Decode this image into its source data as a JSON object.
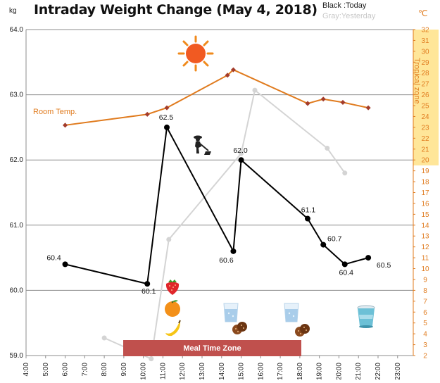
{
  "header": {
    "title": "Intraday Weight Change (May 4, 2018)",
    "legend_today": "Black :Today",
    "legend_yesterday": "Gray:Yesterday",
    "unit_left": "kg",
    "unit_right": "℃",
    "tropical_zone_label": "Tropical zone",
    "room_temp_label": "Room Temp.",
    "meal_zone_label": "Meal Time Zone"
  },
  "colors": {
    "today": "#000000",
    "yesterday": "#d4d4d4",
    "room_temp_line": "#e07b1e",
    "room_temp_marker": "#a33c2b",
    "tropical_zone_fill": "#ffe699",
    "meal_zone_fill": "#c0504d",
    "gridline": "#8c8c8c"
  },
  "icons": [
    "sun-icon",
    "worker-icon",
    "strawberry-icon",
    "orange-icon",
    "banana-icon",
    "water-glass-icon",
    "cookies-icon",
    "water-glass-icon",
    "cookies-icon",
    "yogurt-cup-icon"
  ],
  "chart_data": {
    "type": "line",
    "x_ticks": [
      "4:00",
      "5:00",
      "6:00",
      "7:00",
      "8:00",
      "9:00",
      "10:00",
      "11:00",
      "12:00",
      "13:00",
      "14:00",
      "15:00",
      "16:00",
      "17:00",
      "18:00",
      "19:00",
      "20:00",
      "21:00",
      "22:00",
      "23:00"
    ],
    "x_range": [
      4,
      23.8
    ],
    "y_left": {
      "range": [
        59.0,
        64.0
      ],
      "ticks": [
        "59.0",
        "60.0",
        "61.0",
        "62.0",
        "63.0",
        "64.0"
      ],
      "unit": "kg"
    },
    "y_right": {
      "range": [
        2,
        32
      ],
      "ticks": [
        "2",
        "3",
        "4",
        "5",
        "6",
        "7",
        "8",
        "9",
        "10",
        "11",
        "12",
        "13",
        "14",
        "15",
        "16",
        "17",
        "18",
        "19",
        "20",
        "21",
        "22",
        "23",
        "24",
        "25",
        "26",
        "27",
        "28",
        "29",
        "30",
        "31",
        "32"
      ],
      "unit": "℃"
    },
    "grid": true,
    "tropical_zone": {
      "from": 19.5,
      "to": 32
    },
    "meal_time_zone": {
      "from": 9.0,
      "to": 18.1
    },
    "series": [
      {
        "name": "Today",
        "axis": "left",
        "x": [
          6.0,
          10.2,
          11.2,
          14.6,
          15.0,
          18.4,
          19.2,
          20.3,
          21.5
        ],
        "y": [
          60.4,
          60.1,
          62.5,
          60.6,
          62.0,
          61.1,
          60.7,
          60.4,
          60.5
        ],
        "labels": [
          "60.4",
          "60.1",
          "62.5",
          "60.6",
          "62.0",
          "61.1",
          "60.7",
          "60.4",
          "60.5"
        ]
      },
      {
        "name": "Yesterday",
        "axis": "left",
        "x": [
          8.0,
          10.4,
          11.3,
          15.0,
          15.7,
          19.4,
          20.3
        ],
        "y": [
          59.27,
          58.95,
          60.78,
          62.1,
          63.07,
          62.18,
          61.8
        ]
      },
      {
        "name": "Room Temp.",
        "axis": "right",
        "x": [
          6.0,
          10.2,
          11.2,
          14.3,
          14.6,
          18.4,
          19.2,
          20.2,
          21.5
        ],
        "y": [
          23.2,
          24.2,
          24.8,
          27.8,
          28.3,
          25.2,
          25.6,
          25.3,
          24.8
        ]
      }
    ]
  }
}
